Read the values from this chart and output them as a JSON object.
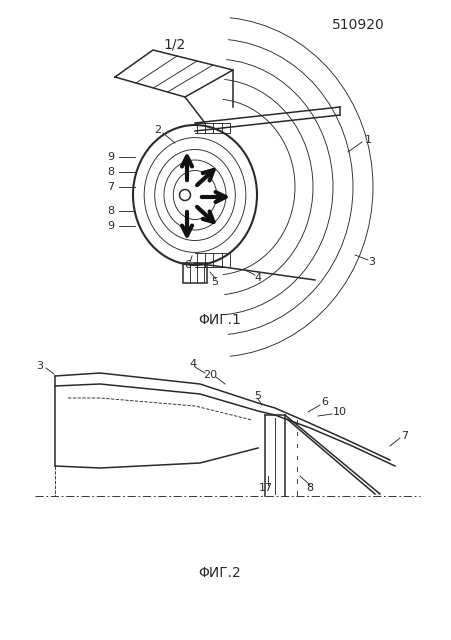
{
  "patent_number": "510920",
  "page_label": "1/2",
  "fig1_label": "ΦИГ.1",
  "fig2_label": "ΦИГ.2",
  "bg_color": "#ffffff",
  "line_color": "#2a2a2a",
  "lw_main": 1.1,
  "lw_thin": 0.65,
  "lw_thick": 1.5,
  "label_fs": 8,
  "title_fs": 10,
  "fig_label_fs": 10
}
